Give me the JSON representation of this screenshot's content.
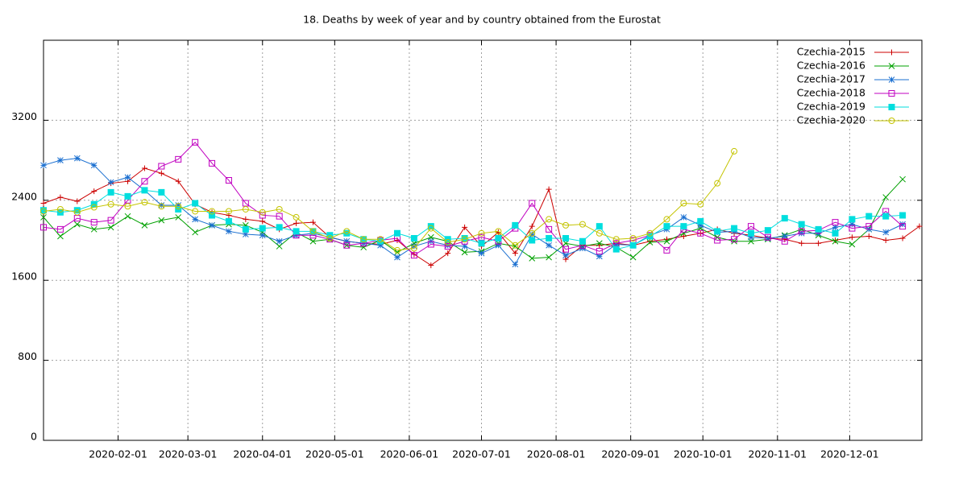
{
  "chart_data": {
    "type": "line",
    "title": "18. Deaths by week of year and by country obtained from the Eurostat",
    "x": [
      "2020-01-01",
      "2020-01-08",
      "2020-01-15",
      "2020-01-22",
      "2020-01-29",
      "2020-02-05",
      "2020-02-12",
      "2020-02-19",
      "2020-02-26",
      "2020-03-04",
      "2020-03-11",
      "2020-03-18",
      "2020-03-25",
      "2020-04-01",
      "2020-04-08",
      "2020-04-15",
      "2020-04-22",
      "2020-04-29",
      "2020-05-06",
      "2020-05-13",
      "2020-05-20",
      "2020-05-27",
      "2020-06-03",
      "2020-06-10",
      "2020-06-17",
      "2020-06-24",
      "2020-07-01",
      "2020-07-08",
      "2020-07-15",
      "2020-07-22",
      "2020-07-29",
      "2020-08-05",
      "2020-08-12",
      "2020-08-19",
      "2020-08-26",
      "2020-09-02",
      "2020-09-09",
      "2020-09-16",
      "2020-09-23",
      "2020-09-30",
      "2020-10-07",
      "2020-10-14",
      "2020-10-21",
      "2020-10-28",
      "2020-11-04",
      "2020-11-11",
      "2020-11-18",
      "2020-11-25",
      "2020-12-02",
      "2020-12-09",
      "2020-12-16",
      "2020-12-23",
      "2020-12-30"
    ],
    "series": [
      {
        "name": "Czechia-2015",
        "color": "#cc0000",
        "marker": "plus",
        "values": [
          2370,
          2430,
          2390,
          2490,
          2570,
          2590,
          2720,
          2670,
          2590,
          2360,
          2280,
          2250,
          2210,
          2190,
          2110,
          2170,
          2180,
          2030,
          1990,
          1970,
          1960,
          2000,
          1860,
          1750,
          1870,
          2130,
          1940,
          2080,
          1870,
          2140,
          2510,
          1810,
          1950,
          1950,
          1970,
          1950,
          1990,
          2010,
          2040,
          2070,
          2110,
          2070,
          2050,
          2020,
          2010,
          1970,
          1970,
          2000,
          2030,
          2040,
          2000,
          2020,
          2140
        ]
      },
      {
        "name": "Czechia-2016",
        "color": "#00a000",
        "marker": "cross",
        "values": [
          2230,
          2040,
          2160,
          2110,
          2130,
          2240,
          2150,
          2200,
          2230,
          2080,
          2150,
          2160,
          2150,
          2080,
          1940,
          2080,
          1990,
          2010,
          1950,
          1930,
          2000,
          1880,
          1970,
          2030,
          1990,
          1880,
          1890,
          1970,
          1940,
          1820,
          1830,
          1970,
          1940,
          1970,
          1930,
          1830,
          1980,
          1990,
          2070,
          2120,
          2030,
          1990,
          1990,
          2010,
          2050,
          2110,
          2050,
          1990,
          1960,
          2110,
          2430,
          2610,
          null
        ]
      },
      {
        "name": "Czechia-2017",
        "color": "#1a6fd0",
        "marker": "star",
        "values": [
          2750,
          2800,
          2820,
          2750,
          2580,
          2630,
          2500,
          2350,
          2350,
          2210,
          2150,
          2090,
          2060,
          2050,
          1990,
          2050,
          2070,
          2030,
          1990,
          1970,
          1950,
          1830,
          1940,
          1990,
          1950,
          1940,
          1870,
          1950,
          1760,
          2060,
          1950,
          1850,
          1920,
          1840,
          1960,
          1950,
          2050,
          2110,
          2230,
          2150,
          2080,
          2090,
          2030,
          2020,
          2040,
          2070,
          2070,
          2130,
          2160,
          2110,
          2080,
          2160,
          null
        ]
      },
      {
        "name": "Czechia-2018",
        "color": "#c000c0",
        "marker": "square",
        "values": [
          2130,
          2110,
          2220,
          2180,
          2200,
          2400,
          2590,
          2740,
          2810,
          2980,
          2770,
          2600,
          2370,
          2250,
          2240,
          2050,
          2050,
          2010,
          1950,
          1970,
          2000,
          2020,
          1850,
          1960,
          1940,
          1990,
          2030,
          1990,
          2120,
          2370,
          2110,
          1910,
          1950,
          1890,
          1970,
          2000,
          2050,
          1900,
          2110,
          2070,
          2000,
          2010,
          2140,
          2030,
          1990,
          2090,
          2100,
          2180,
          2120,
          2140,
          2290,
          2140,
          null
        ]
      },
      {
        "name": "Czechia-2019",
        "color": "#00dede",
        "marker": "filled-square",
        "values": [
          2300,
          2280,
          2300,
          2360,
          2480,
          2440,
          2500,
          2480,
          2310,
          2370,
          2250,
          2190,
          2110,
          2120,
          2130,
          2090,
          2090,
          2050,
          2070,
          2010,
          1990,
          2070,
          2020,
          2140,
          2010,
          2020,
          1970,
          2020,
          2150,
          2000,
          2020,
          2020,
          1990,
          2140,
          1910,
          1950,
          2040,
          2140,
          2140,
          2190,
          2090,
          2120,
          2070,
          2100,
          2220,
          2160,
          2110,
          2070,
          2210,
          2240,
          2240,
          2250,
          null
        ]
      },
      {
        "name": "Czechia-2020",
        "color": "#c4c400",
        "marker": "circle",
        "values": [
          2290,
          2310,
          2280,
          2330,
          2360,
          2340,
          2380,
          2340,
          2340,
          2290,
          2290,
          2290,
          2310,
          2280,
          2310,
          2230,
          2090,
          2020,
          2090,
          2010,
          2010,
          1900,
          1920,
          2120,
          1980,
          2010,
          2070,
          2090,
          1950,
          2070,
          2210,
          2150,
          2160,
          2070,
          2010,
          2020,
          2070,
          2210,
          2370,
          2360,
          2570,
          2890,
          null,
          null,
          null,
          null,
          null,
          null,
          null,
          null,
          null,
          null,
          null
        ]
      }
    ],
    "xlim": [
      "2020-01-01",
      "2020-12-31"
    ],
    "xticks": [
      "2020-02-01",
      "2020-03-01",
      "2020-04-01",
      "2020-05-01",
      "2020-06-01",
      "2020-07-01",
      "2020-08-01",
      "2020-09-01",
      "2020-10-01",
      "2020-11-01",
      "2020-12-01"
    ],
    "ylim": [
      0,
      4000
    ],
    "yticks": [
      0,
      800,
      1600,
      2400,
      3200
    ],
    "grid": true,
    "legend": "top-right"
  }
}
